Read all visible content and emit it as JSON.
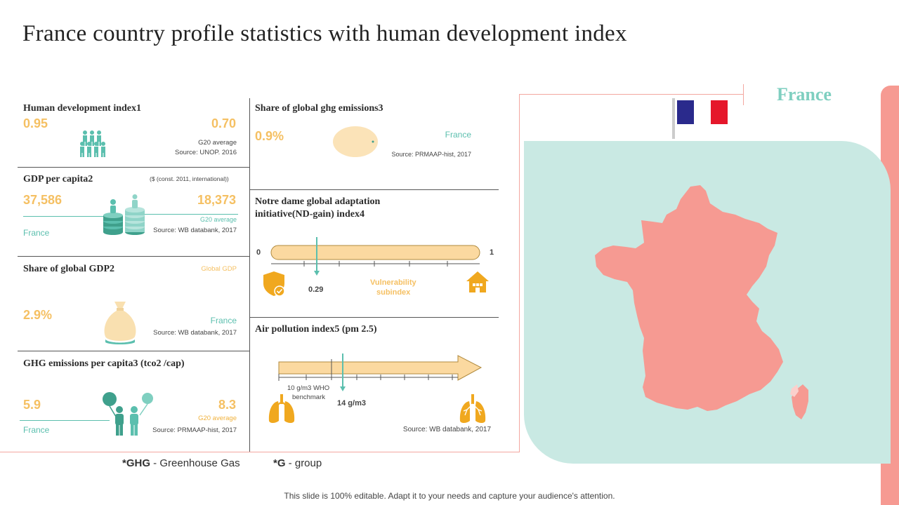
{
  "title": "France country profile statistics with human development index",
  "hdi": {
    "title": "Human development index1",
    "france_value": "0.95",
    "g20_value": "0.70",
    "g20_label": "G20 average",
    "source": "Source: UNOP.  2016"
  },
  "gdp": {
    "title": "GDP per capita2",
    "unit_note": "($ (const. 2011, international))",
    "france_value": "37,586",
    "g20_value": "18,373",
    "g20_label": "G20 average",
    "france_label": "France",
    "source": "Source: WB databank, 2017"
  },
  "gdp_share": {
    "title": "Share of global GDP2",
    "global_label": "Global GDP",
    "value": "2.9%",
    "france_label": "France",
    "source": "Source: WB databank, 2017"
  },
  "ghg_capita": {
    "title": "GHG emissions per capita3 (tco2 /cap)",
    "france_value": "5.9",
    "g20_value": "8.3",
    "g20_label": "G20 average",
    "france_label": "France",
    "source": "Source: PRMAAP-hist, 2017"
  },
  "ghg_share": {
    "title": "Share of global ghg emissions3",
    "value": "0.9%",
    "france_label": "France",
    "source": "Source: PRMAAP-hist, 2017"
  },
  "ndgain": {
    "title_line1": "Notre dame global adaptation",
    "title_line2": "initiative(ND-gain) index4",
    "min": "0",
    "max": "1",
    "value": "0.29",
    "value_fraction": 0.29,
    "vuln_line1": "Vulnerability",
    "vuln_line2": "subindex"
  },
  "air": {
    "title": "Air pollution index5 (pm 2.5)",
    "benchmark_line1": "10 g/m3 WHO",
    "benchmark_line2": "benchmark",
    "value": "14 g/m3",
    "source": "Source: WB databank, 2017"
  },
  "legend": {
    "ghg_abbr": "*GHG",
    "ghg_desc": " - Greenhouse  Gas",
    "g_abbr": "*G",
    "g_desc": " - group"
  },
  "map": {
    "country": "France"
  },
  "footer": "This slide is 100% editable. Adapt it to your needs and capture your audience's attention.",
  "colors": {
    "accent_orange": "#f5c063",
    "accent_teal": "#5bbfae",
    "map_pink": "#f69a92",
    "map_bg": "#c9e9e3"
  }
}
